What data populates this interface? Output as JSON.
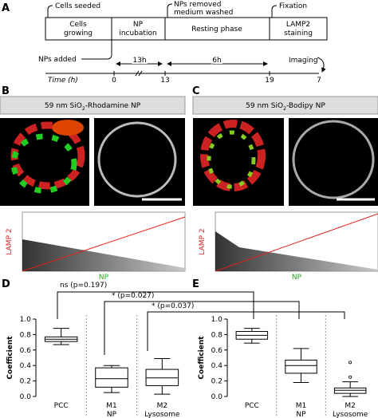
{
  "panel_a": {
    "label": "A",
    "callouts": [
      "Cells seeded",
      "NPs removed",
      "medium washed",
      "Fixation",
      "NPs added",
      "Imaging"
    ],
    "phases": [
      [
        "Cells",
        "growing"
      ],
      [
        "NP",
        "incubation"
      ],
      [
        "Resting phase"
      ],
      [
        "LAMP2",
        "staining"
      ]
    ],
    "durations": [
      "13h",
      "6h"
    ],
    "time_label": "Time (h)",
    "time_points": [
      "0",
      "13",
      "19",
      "7"
    ]
  },
  "panel_b": {
    "label": "B",
    "title": [
      "59 nm SiO",
      "2",
      "-Rhodamine NP"
    ],
    "y_label": "LAMP 2",
    "x_label": "NP"
  },
  "panel_c": {
    "label": "C",
    "title": [
      "59 nm SiO",
      "2",
      "-Bodipy NP"
    ],
    "y_label": "LAMP 2",
    "x_label": "NP"
  },
  "comparisons": [
    "ns (p=0.197)",
    "* (p=0.027)",
    "* (p=0.037)"
  ],
  "chart_data": [
    {
      "type": "box",
      "label": "D",
      "y_label": "Coefficient",
      "categories": [
        [
          "PCC"
        ],
        [
          "M1",
          "NP"
        ],
        [
          "M2",
          "Lysosome"
        ]
      ],
      "min": [
        0.67,
        0.05,
        0.03
      ],
      "q1": [
        0.71,
        0.12,
        0.14
      ],
      "median": [
        0.74,
        0.23,
        0.24
      ],
      "q3": [
        0.77,
        0.37,
        0.35
      ],
      "max": [
        0.88,
        0.4,
        0.49
      ],
      "ylim": [
        0,
        1
      ],
      "yticks": [
        {
          "value": 0,
          "label": "0.0"
        },
        0.2,
        0.4,
        0.6,
        0.8,
        {
          "value": 1,
          "label": "1.0"
        }
      ]
    },
    {
      "type": "box",
      "label": "E",
      "y_label": "Coefficient",
      "categories": [
        [
          "PCC"
        ],
        [
          "M1",
          "NP"
        ],
        [
          "M2",
          "Lysosome"
        ]
      ],
      "min": [
        0.69,
        0.18,
        0.0
      ],
      "q1": [
        0.74,
        0.3,
        0.04
      ],
      "median": [
        0.79,
        0.4,
        0.08
      ],
      "q3": [
        0.84,
        0.47,
        0.11
      ],
      "max": [
        0.88,
        0.62,
        0.19
      ],
      "outliers": [
        null,
        null,
        [
          0.25,
          0.44
        ]
      ],
      "ylim": [
        0,
        1
      ],
      "yticks": [
        {
          "value": 0,
          "label": "0.0"
        },
        0.2,
        0.4,
        0.6,
        0.8,
        {
          "value": 1,
          "label": "1.0"
        }
      ]
    }
  ]
}
